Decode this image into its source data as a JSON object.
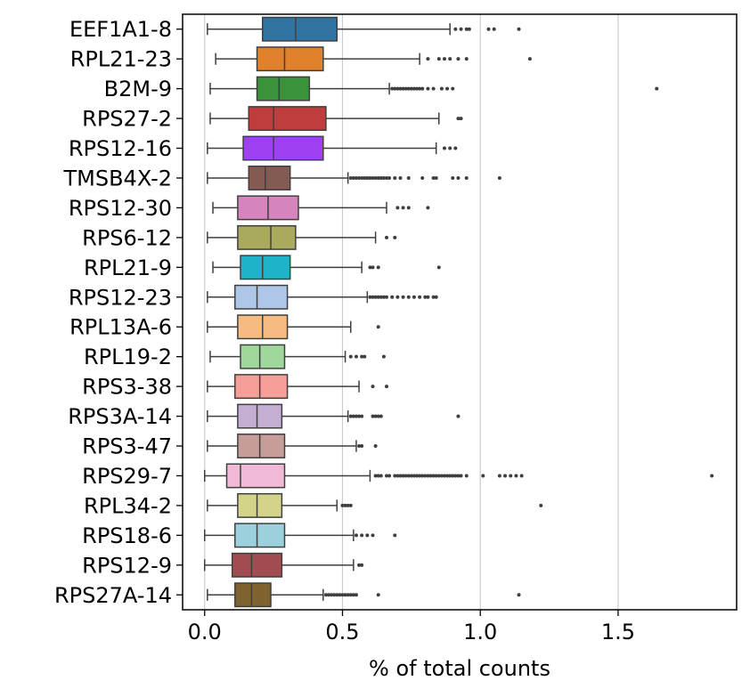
{
  "chart_data": {
    "type": "boxplot",
    "orientation": "horizontal",
    "xlabel": "% of total counts",
    "xlim": [
      -0.08,
      1.93
    ],
    "x_ticks": [
      0.0,
      0.5,
      1.0,
      1.5
    ],
    "x_tick_labels": [
      "0.0",
      "0.5",
      "1.0",
      "1.5"
    ],
    "grid": "vertical",
    "series": [
      {
        "name": "EEF1A1-8",
        "color": "#3274a1",
        "whisker_low": 0.01,
        "q1": 0.21,
        "median": 0.33,
        "q3": 0.48,
        "whisker_high": 0.89,
        "outliers": [
          0.91,
          0.93,
          0.95,
          0.96,
          1.03,
          1.05,
          1.14
        ]
      },
      {
        "name": "RPL21-23",
        "color": "#e1812c",
        "whisker_low": 0.04,
        "q1": 0.19,
        "median": 0.29,
        "q3": 0.43,
        "whisker_high": 0.78,
        "outliers": [
          0.81,
          0.85,
          0.87,
          0.89,
          0.92,
          0.95,
          1.18
        ]
      },
      {
        "name": "B2M-9",
        "color": "#3a923a",
        "whisker_low": 0.02,
        "q1": 0.19,
        "median": 0.27,
        "q3": 0.38,
        "whisker_high": 0.67,
        "outliers": [
          0.68,
          0.69,
          0.7,
          0.71,
          0.72,
          0.73,
          0.74,
          0.75,
          0.76,
          0.77,
          0.78,
          0.79,
          0.81,
          0.83,
          0.86,
          0.88,
          0.9,
          1.64
        ]
      },
      {
        "name": "RPS27-2",
        "color": "#c03d3e",
        "whisker_low": 0.02,
        "q1": 0.16,
        "median": 0.25,
        "q3": 0.44,
        "whisker_high": 0.85,
        "outliers": [
          0.92,
          0.93
        ]
      },
      {
        "name": "RPS12-16",
        "color": "#a040f3",
        "whisker_low": 0.01,
        "q1": 0.14,
        "median": 0.25,
        "q3": 0.43,
        "whisker_high": 0.84,
        "outliers": [
          0.87,
          0.89,
          0.91
        ]
      },
      {
        "name": "TMSB4X-2",
        "color": "#845b53",
        "whisker_low": 0.01,
        "q1": 0.16,
        "median": 0.22,
        "q3": 0.31,
        "whisker_high": 0.52,
        "outliers": [
          0.53,
          0.54,
          0.55,
          0.56,
          0.57,
          0.58,
          0.59,
          0.6,
          0.61,
          0.62,
          0.63,
          0.64,
          0.65,
          0.66,
          0.67,
          0.69,
          0.71,
          0.74,
          0.79,
          0.83,
          0.84,
          0.9,
          0.92,
          0.95,
          1.07
        ]
      },
      {
        "name": "RPS12-30",
        "color": "#d684bd",
        "whisker_low": 0.03,
        "q1": 0.12,
        "median": 0.23,
        "q3": 0.34,
        "whisker_high": 0.66,
        "outliers": [
          0.7,
          0.72,
          0.74,
          0.81
        ]
      },
      {
        "name": "RPS6-12",
        "color": "#a9aa5c",
        "whisker_low": 0.01,
        "q1": 0.12,
        "median": 0.24,
        "q3": 0.33,
        "whisker_high": 0.62,
        "outliers": [
          0.66,
          0.69
        ]
      },
      {
        "name": "RPL21-9",
        "color": "#20b2c8",
        "whisker_low": 0.03,
        "q1": 0.13,
        "median": 0.21,
        "q3": 0.31,
        "whisker_high": 0.57,
        "outliers": [
          0.6,
          0.61,
          0.63,
          0.85
        ]
      },
      {
        "name": "RPS12-23",
        "color": "#aec7e8",
        "whisker_low": 0.01,
        "q1": 0.11,
        "median": 0.19,
        "q3": 0.3,
        "whisker_high": 0.59,
        "outliers": [
          0.6,
          0.61,
          0.62,
          0.63,
          0.64,
          0.65,
          0.66,
          0.68,
          0.7,
          0.72,
          0.74,
          0.76,
          0.78,
          0.8,
          0.81,
          0.83,
          0.84
        ]
      },
      {
        "name": "RPL13A-6",
        "color": "#f5bb81",
        "whisker_low": 0.01,
        "q1": 0.12,
        "median": 0.21,
        "q3": 0.3,
        "whisker_high": 0.53,
        "outliers": [
          0.63
        ]
      },
      {
        "name": "RPL19-2",
        "color": "#9fd89a",
        "whisker_low": 0.02,
        "q1": 0.13,
        "median": 0.2,
        "q3": 0.29,
        "whisker_high": 0.51,
        "outliers": [
          0.53,
          0.55,
          0.57,
          0.58,
          0.65
        ]
      },
      {
        "name": "RPS3-38",
        "color": "#f69e98",
        "whisker_low": 0.01,
        "q1": 0.11,
        "median": 0.2,
        "q3": 0.3,
        "whisker_high": 0.56,
        "outliers": [
          0.61,
          0.66
        ]
      },
      {
        "name": "RPS3A-14",
        "color": "#c4afd3",
        "whisker_low": 0.01,
        "q1": 0.12,
        "median": 0.19,
        "q3": 0.28,
        "whisker_high": 0.52,
        "outliers": [
          0.53,
          0.54,
          0.55,
          0.56,
          0.57,
          0.61,
          0.62,
          0.63,
          0.64,
          0.92
        ]
      },
      {
        "name": "RPS3-47",
        "color": "#c59e99",
        "whisker_low": 0.01,
        "q1": 0.12,
        "median": 0.2,
        "q3": 0.29,
        "whisker_high": 0.55,
        "outliers": [
          0.56,
          0.57,
          0.62
        ]
      },
      {
        "name": "RPS29-7",
        "color": "#f0b9d5",
        "whisker_low": 0.0,
        "q1": 0.08,
        "median": 0.13,
        "q3": 0.29,
        "whisker_high": 0.6,
        "outliers": [
          0.62,
          0.63,
          0.64,
          0.66,
          0.67,
          0.69,
          0.7,
          0.71,
          0.72,
          0.73,
          0.74,
          0.75,
          0.76,
          0.77,
          0.78,
          0.79,
          0.8,
          0.81,
          0.82,
          0.83,
          0.84,
          0.85,
          0.86,
          0.87,
          0.88,
          0.89,
          0.9,
          0.91,
          0.92,
          0.93,
          0.95,
          1.01,
          1.07,
          1.09,
          1.11,
          1.13,
          1.15,
          1.84
        ]
      },
      {
        "name": "RPL34-2",
        "color": "#d3d38a",
        "whisker_low": 0.01,
        "q1": 0.12,
        "median": 0.19,
        "q3": 0.28,
        "whisker_high": 0.48,
        "outliers": [
          0.5,
          0.51,
          0.52,
          0.53,
          1.22
        ]
      },
      {
        "name": "RPS18-6",
        "color": "#9cd0dc",
        "whisker_low": 0.0,
        "q1": 0.11,
        "median": 0.19,
        "q3": 0.29,
        "whisker_high": 0.54,
        "outliers": [
          0.55,
          0.57,
          0.59,
          0.61,
          0.69
        ]
      },
      {
        "name": "RPS12-9",
        "color": "#a14c50",
        "whisker_low": 0.0,
        "q1": 0.1,
        "median": 0.17,
        "q3": 0.28,
        "whisker_high": 0.54,
        "outliers": [
          0.56,
          0.57
        ]
      },
      {
        "name": "RPS27A-14",
        "color": "#7e6230",
        "whisker_low": 0.01,
        "q1": 0.11,
        "median": 0.17,
        "q3": 0.24,
        "whisker_high": 0.43,
        "outliers": [
          0.44,
          0.45,
          0.46,
          0.47,
          0.48,
          0.49,
          0.5,
          0.51,
          0.52,
          0.53,
          0.54,
          0.55,
          0.63,
          1.14
        ]
      }
    ]
  }
}
